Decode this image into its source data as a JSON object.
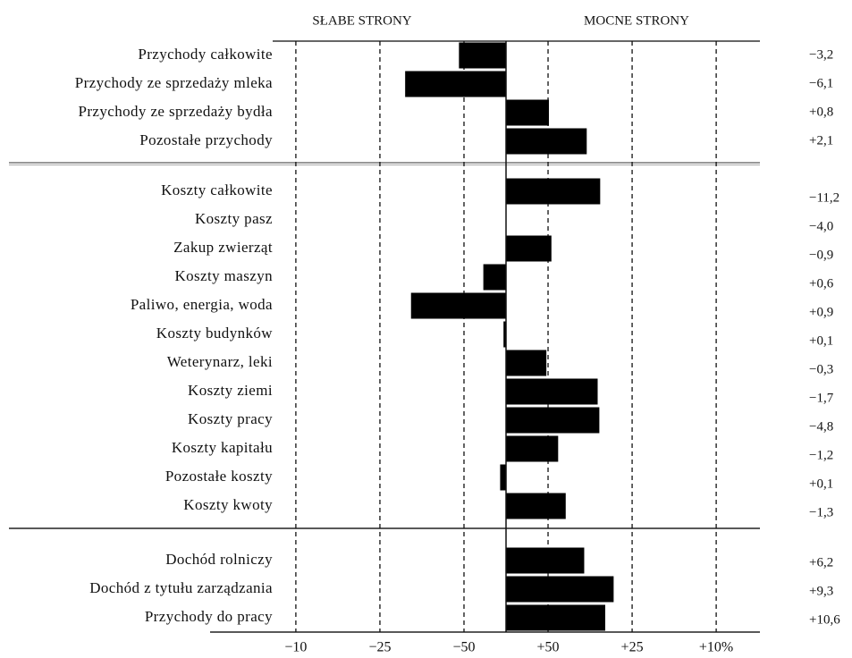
{
  "chart_data": {
    "type": "bar",
    "orientation": "horizontal",
    "headers": [
      "SŁABE STRONY",
      "MOCNE STRONY"
    ],
    "categories": [
      "Przychody całkowite",
      "Przychody ze sprzedaży mleka",
      "Przychody ze sprzedaży bydła",
      "Pozostałe przychody",
      "Koszty całkowite",
      "Koszty pasz",
      "Zakup zwierząt",
      "Koszty maszyn",
      "Paliwo, energia, woda",
      "Koszty budynków",
      "Weterynarz, leki",
      "Koszty ziemi",
      "Koszty pracy",
      "Koszty kapitału",
      "Pozostałe koszty",
      "Koszty kwoty",
      "Dochód rolniczy",
      "Dochód z tytułu zarządzania",
      "Przychody do pracy"
    ],
    "values": [
      -0.56,
      -1.2,
      0.51,
      0.96,
      1.12,
      0,
      0.54,
      -0.27,
      -1.13,
      -0.03,
      0.48,
      1.09,
      1.11,
      0.62,
      -0.07,
      0.71,
      0.93,
      1.28,
      1.18
    ],
    "annotations": [
      "−3,2",
      "−6,1",
      "+0,8",
      "+2,1",
      "−11,2",
      "−4,0",
      "−0,9",
      "+0,6",
      "+0,9",
      "+0,1",
      "−0,3",
      "−1,7",
      "−4,8",
      "−1,2",
      "+0,1",
      "−1,3",
      "+6,2",
      "+9,3",
      "+10,6"
    ],
    "color": "#000000",
    "xlim": [
      -3.52,
      3.02
    ],
    "xticks": [
      {
        "value": -2.5,
        "label": "−10"
      },
      {
        "value": -1.5,
        "label": "−25"
      },
      {
        "value": -0.5,
        "label": "−50"
      },
      {
        "value": 0.5,
        "label": "+50"
      },
      {
        "value": 1.5,
        "label": "+25"
      },
      {
        "value": 2.5,
        "label": "+10%"
      }
    ],
    "grid": true
  }
}
